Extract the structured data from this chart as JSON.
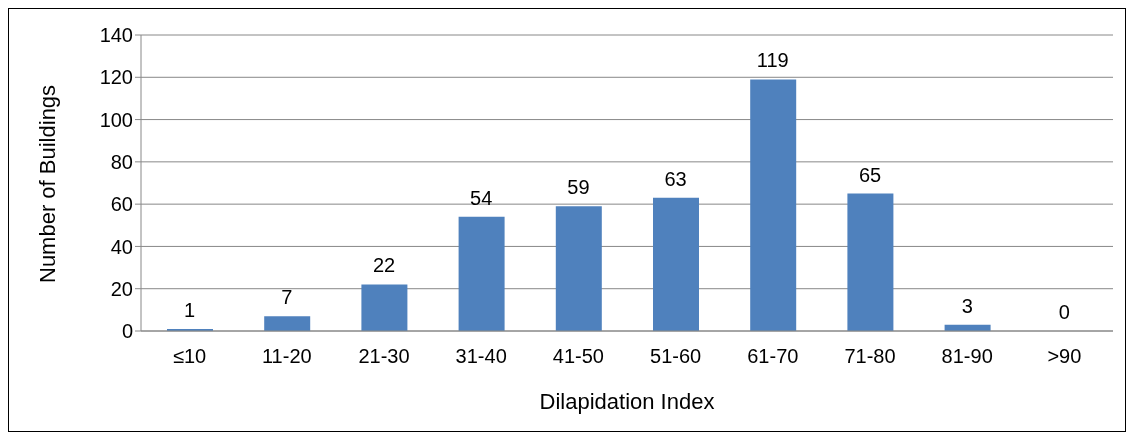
{
  "chart_data": {
    "type": "bar",
    "xlabel": "Dilapidation Index",
    "ylabel": "Number of Buildings",
    "categories": [
      "≤10",
      "11-20",
      "21-30",
      "31-40",
      "41-50",
      "51-60",
      "61-70",
      "71-80",
      "81-90",
      ">90"
    ],
    "values": [
      1,
      7,
      22,
      54,
      59,
      63,
      119,
      65,
      3,
      0
    ],
    "color": "#4f81bd",
    "ylim": [
      0,
      140
    ],
    "yticks": [
      0,
      20,
      40,
      60,
      80,
      100,
      120,
      140
    ],
    "grid": "y",
    "data_labels": true
  }
}
